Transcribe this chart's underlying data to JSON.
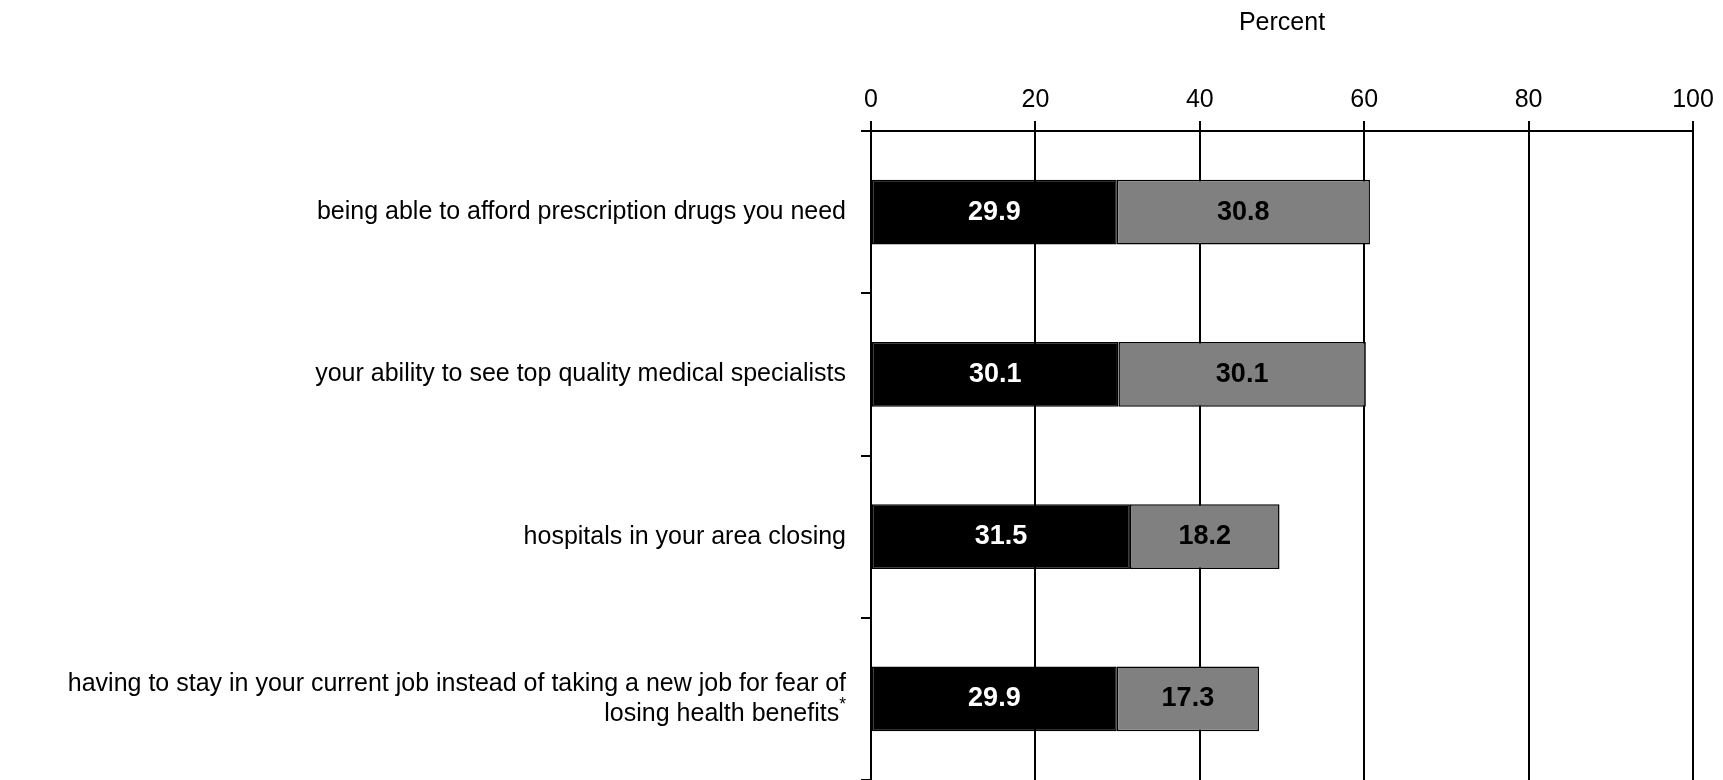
{
  "chart_data": {
    "type": "bar",
    "orientation": "horizontal",
    "stacked": true,
    "xlabel": "Percent",
    "categories": [
      "being able to afford prescription drugs you need",
      "your ability to see top quality medical specialists",
      "hospitals in your area closing",
      "having to stay in your current job instead of taking a new job for fear of losing health benefits$^{*}$"
    ],
    "series": [
      {
        "color": "#000000",
        "values": [
          29.9,
          30.1,
          31.5,
          29.9
        ]
      },
      {
        "color": "#808080",
        "values": [
          30.8,
          30.1,
          18.2,
          17.3
        ]
      }
    ],
    "xlim": [
      0,
      100
    ],
    "xticks": [
      0,
      20,
      40,
      60,
      80,
      100
    ],
    "grid": "x",
    "legend": false,
    "data_labels": true
  }
}
